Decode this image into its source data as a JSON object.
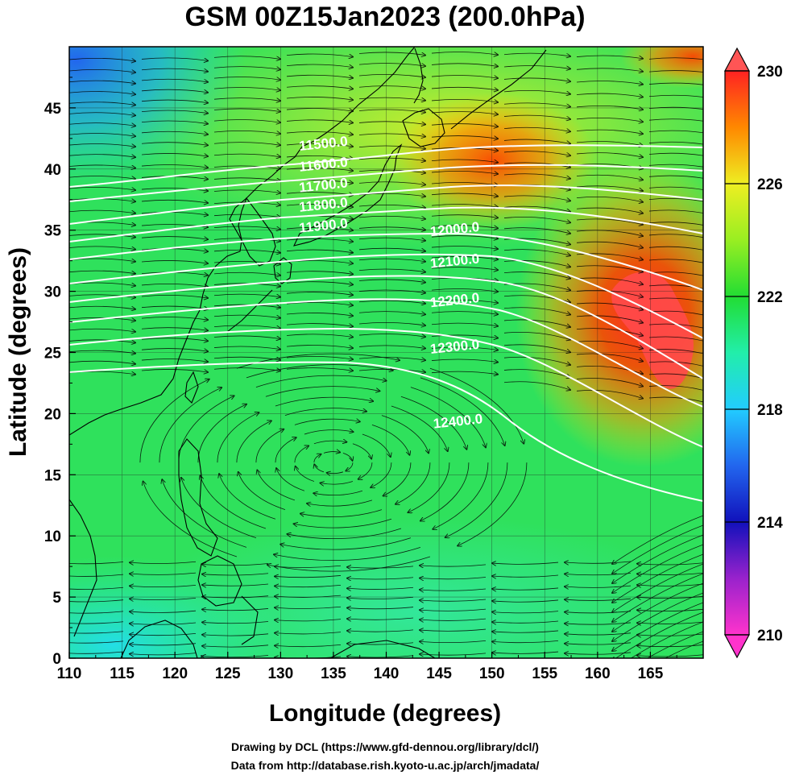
{
  "title": "GSM 00Z15Jan2023 (200.0hPa)",
  "xlabel": "Longitude (degrees)",
  "ylabel": "Latitude  (degrees)",
  "xticks": [
    "110",
    "115",
    "120",
    "125",
    "130",
    "135",
    "140",
    "145",
    "150",
    "155",
    "160",
    "165"
  ],
  "yticks": [
    "0",
    "5",
    "10",
    "15",
    "20",
    "25",
    "30",
    "35",
    "40",
    "45"
  ],
  "colorbar": {
    "ticks": [
      "210",
      "214",
      "218",
      "222",
      "226",
      "230"
    ],
    "range": [
      210,
      230
    ],
    "colors": {
      "min": "#ff33cc",
      "low": "#2222cc",
      "mid_low": "#22ccff",
      "mid": "#22dd44",
      "mid_high": "#ddee22",
      "high": "#ff8800",
      "max": "#ff2222"
    }
  },
  "credits": {
    "line1": "Drawing by DCL (https://www.gfd-dennou.org/library/dcl/)",
    "line2": "Data from http://database.rish.kyoto-u.ac.jp/arch/jmadata/"
  },
  "map": {
    "lon_range": [
      110,
      170
    ],
    "lat_range": [
      0,
      50
    ],
    "contour_color": "#ffffff",
    "contour_labels": [
      {
        "text": "11500.0",
        "lon": 131.8,
        "lat": 41.5
      },
      {
        "text": "11600.0",
        "lon": 131.8,
        "lat": 39.8
      },
      {
        "text": "11700.0",
        "lon": 131.8,
        "lat": 38.1
      },
      {
        "text": "11800.0",
        "lon": 131.8,
        "lat": 36.5
      },
      {
        "text": "11900.0",
        "lon": 131.8,
        "lat": 34.8
      },
      {
        "text": "12000.0",
        "lon": 144.2,
        "lat": 34.5
      },
      {
        "text": "12100.0",
        "lon": 144.2,
        "lat": 31.9
      },
      {
        "text": "12200.0",
        "lon": 144.2,
        "lat": 28.7
      },
      {
        "text": "12300.0",
        "lon": 144.2,
        "lat": 24.9
      },
      {
        "text": "12400.0",
        "lon": 144.5,
        "lat": 18.8
      }
    ]
  }
}
